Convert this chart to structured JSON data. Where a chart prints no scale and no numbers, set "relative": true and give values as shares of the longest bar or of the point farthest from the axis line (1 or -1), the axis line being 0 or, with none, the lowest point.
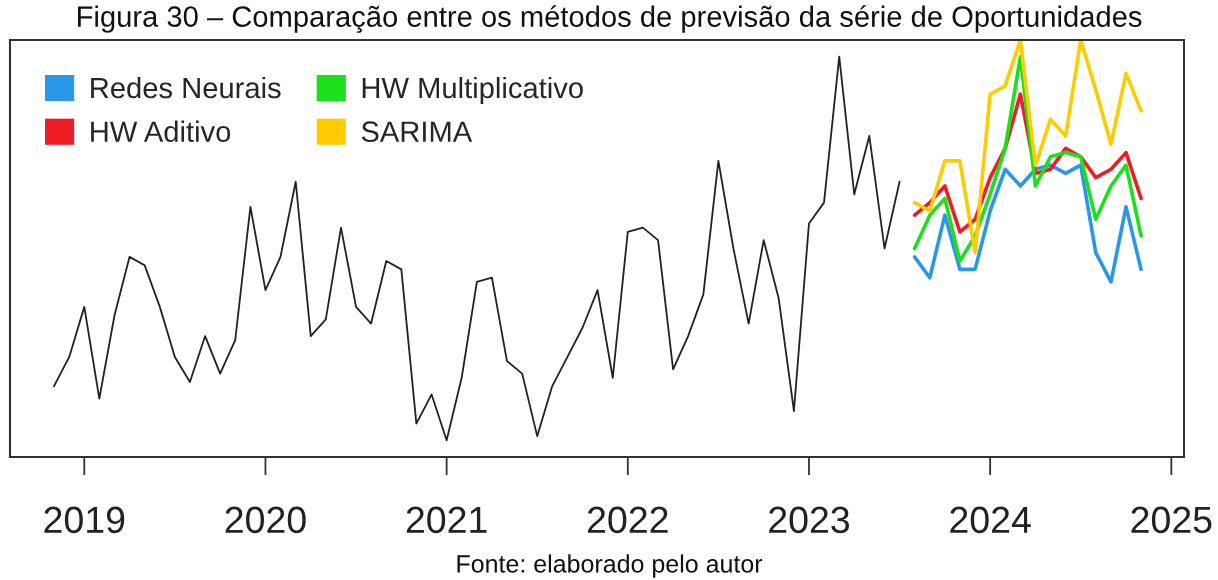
{
  "chart_data": {
    "type": "line",
    "title": "Figura 30 – Comparação entre os métodos de previsão da série de Oportunidades",
    "relative": true,
    "xlim": [
      2018.59,
      2025.07
    ],
    "xticks": [
      2019,
      2020,
      2021,
      2022,
      2023,
      2024,
      2025
    ],
    "legend": "top left",
    "line_style": "solid",
    "annotations": [
      "Fonte: elaborado pelo autor"
    ],
    "series": [
      {
        "color": "#222222",
        "x": [
          2018.833,
          2018.917,
          2019,
          2019.083,
          2019.167,
          2019.25,
          2019.333,
          2019.417,
          2019.5,
          2019.583,
          2019.667,
          2019.75,
          2019.833,
          2019.917,
          2020,
          2020.083,
          2020.167,
          2020.25,
          2020.333,
          2020.417,
          2020.5,
          2020.583,
          2020.667,
          2020.75,
          2020.833,
          2020.917,
          2021,
          2021.083,
          2021.167,
          2021.25,
          2021.333,
          2021.417,
          2021.5,
          2021.583,
          2021.667,
          2021.75,
          2021.833,
          2021.917,
          2022,
          2022.083,
          2022.167,
          2022.25,
          2022.333,
          2022.417,
          2022.5,
          2022.583,
          2022.667,
          2022.75,
          2022.833,
          2022.917,
          2023,
          2023.083,
          2023.167,
          2023.25,
          2023.333,
          2023.417,
          2023.5
        ],
        "values": [
          0.17,
          0.24,
          0.36,
          0.14,
          0.34,
          0.48,
          0.46,
          0.36,
          0.24,
          0.18,
          0.29,
          0.2,
          0.28,
          0.6,
          0.4,
          0.48,
          0.66,
          0.29,
          0.33,
          0.55,
          0.36,
          0.32,
          0.47,
          0.45,
          0.08,
          0.15,
          0.04,
          0.19,
          0.42,
          0.43,
          0.23,
          0.2,
          0.05,
          0.17,
          0.24,
          0.31,
          0.4,
          0.19,
          0.54,
          0.55,
          0.52,
          0.21,
          0.29,
          0.39,
          0.71,
          0.5,
          0.32,
          0.52,
          0.38,
          0.11,
          0.56,
          0.61,
          0.96,
          0.63,
          0.77,
          0.5,
          0.66
        ]
      },
      {
        "name": "Redes Neurais",
        "color": "#2a98e6",
        "x": [
          2023.583,
          2023.667,
          2023.75,
          2023.833,
          2023.917,
          2024,
          2024.083,
          2024.167,
          2024.25,
          2024.333,
          2024.417,
          2024.5,
          2024.583,
          2024.667,
          2024.75,
          2024.833
        ],
        "values": [
          0.48,
          0.43,
          0.58,
          0.45,
          0.45,
          0.59,
          0.69,
          0.65,
          0.69,
          0.7,
          0.68,
          0.7,
          0.49,
          0.42,
          0.6,
          0.45
        ]
      },
      {
        "name": "HW Aditivo",
        "color": "#ee1c24",
        "x": [
          2023.583,
          2023.667,
          2023.75,
          2023.833,
          2023.917,
          2024,
          2024.083,
          2024.167,
          2024.25,
          2024.333,
          2024.417,
          2024.5,
          2024.583,
          2024.667,
          2024.75,
          2024.833
        ],
        "values": [
          0.58,
          0.61,
          0.65,
          0.54,
          0.57,
          0.67,
          0.74,
          0.87,
          0.68,
          0.69,
          0.74,
          0.72,
          0.67,
          0.69,
          0.73,
          0.62
        ]
      },
      {
        "name": "HW Multiplicativo",
        "color": "#1de01d",
        "x": [
          2023.583,
          2023.667,
          2023.75,
          2023.833,
          2023.917,
          2024,
          2024.083,
          2024.167,
          2024.25,
          2024.333,
          2024.417,
          2024.5,
          2024.583,
          2024.667,
          2024.75,
          2024.833
        ],
        "values": [
          0.5,
          0.58,
          0.62,
          0.47,
          0.53,
          0.63,
          0.74,
          0.96,
          0.65,
          0.72,
          0.73,
          0.72,
          0.57,
          0.65,
          0.7,
          0.53
        ]
      },
      {
        "name": "SARIMA",
        "color": "#ffcc00",
        "x": [
          2023.583,
          2023.667,
          2023.75,
          2023.833,
          2023.917,
          2024,
          2024.083,
          2024.167,
          2024.25,
          2024.333,
          2024.417,
          2024.5,
          2024.583,
          2024.667,
          2024.75,
          2024.833
        ],
        "values": [
          0.61,
          0.59,
          0.71,
          0.71,
          0.49,
          0.87,
          0.89,
          1.0,
          0.7,
          0.81,
          0.77,
          1.0,
          0.88,
          0.75,
          0.92,
          0.83
        ]
      }
    ]
  }
}
